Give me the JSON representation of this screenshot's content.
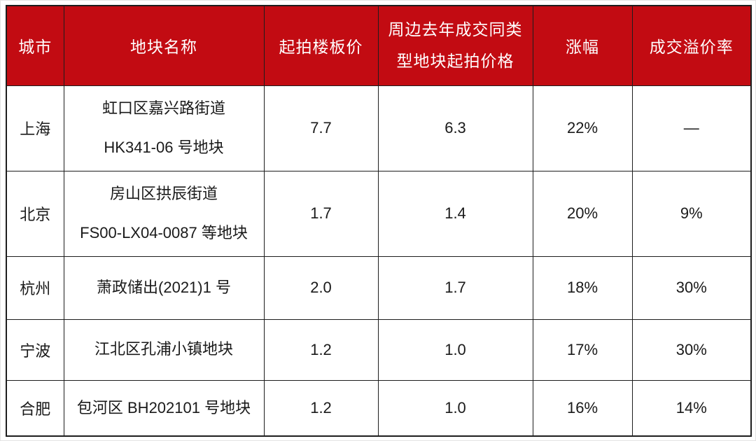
{
  "colors": {
    "header_bg": "#c20b12",
    "header_text": "#ffffff",
    "border": "#1d1d1d",
    "cell_text": "#1a1a1a",
    "background": "#ffffff"
  },
  "table": {
    "columns": [
      {
        "label": "城市"
      },
      {
        "label": "地块名称"
      },
      {
        "label": "起拍楼板价"
      },
      {
        "label_line1": "周边去年成交同类",
        "label_line2": "型地块起拍价格"
      },
      {
        "label": "涨幅"
      },
      {
        "label": "成交溢价率"
      }
    ],
    "rows": [
      {
        "city": "上海",
        "parcel_line1": "虹口区嘉兴路街道",
        "parcel_line2": "HK341-06 号地块",
        "starting_floor_price": "7.7",
        "last_year_comparable_price": "6.3",
        "increase": "22%",
        "premium_rate": "—"
      },
      {
        "city": "北京",
        "parcel_line1": "房山区拱辰街道",
        "parcel_line2": "FS00-LX04-0087 等地块",
        "starting_floor_price": "1.7",
        "last_year_comparable_price": "1.4",
        "increase": "20%",
        "premium_rate": "9%"
      },
      {
        "city": "杭州",
        "parcel_line1": "萧政储出(2021)1 号",
        "starting_floor_price": "2.0",
        "last_year_comparable_price": "1.7",
        "increase": "18%",
        "premium_rate": "30%"
      },
      {
        "city": "宁波",
        "parcel_line1": "江北区孔浦小镇地块",
        "starting_floor_price": "1.2",
        "last_year_comparable_price": "1.0",
        "increase": "17%",
        "premium_rate": "30%"
      },
      {
        "city": "合肥",
        "parcel_line1": "包河区 BH202101 号地块",
        "starting_floor_price": "1.2",
        "last_year_comparable_price": "1.0",
        "increase": "16%",
        "premium_rate": "14%"
      }
    ]
  }
}
